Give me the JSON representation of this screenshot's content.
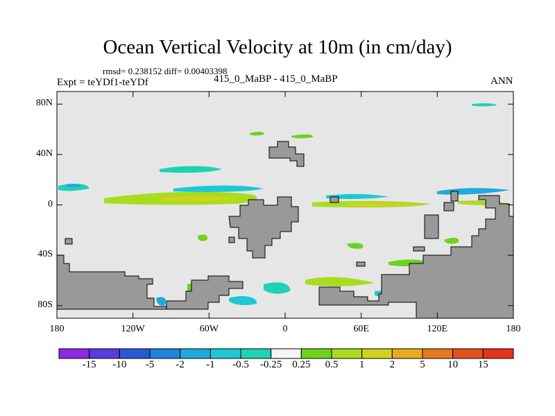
{
  "title": "Ocean Vertical Velocity at 10m (in cm/day)",
  "stats_line": "rmsd= 0.238152 diff= 0.00403398",
  "left_label": "Expt = teYDf1-teYDf",
  "center_label": "415_0_MaBP - 415_0_MaBP",
  "right_label": "ANN",
  "map": {
    "projection": "cylindrical equidistant",
    "lon_range": [
      -180,
      180
    ],
    "lat_range": [
      -90,
      90
    ],
    "y_ticks": [
      {
        "lat": 80,
        "label": "80N"
      },
      {
        "lat": 40,
        "label": "40N"
      },
      {
        "lat": 0,
        "label": "0"
      },
      {
        "lat": -40,
        "label": "40S"
      },
      {
        "lat": -80,
        "label": "80S"
      }
    ],
    "x_ticks": [
      {
        "lon": -180,
        "label": "180"
      },
      {
        "lon": -120,
        "label": "120W"
      },
      {
        "lon": -60,
        "label": "60W"
      },
      {
        "lon": 0,
        "label": "0"
      },
      {
        "lon": 60,
        "label": "60E"
      },
      {
        "lon": 120,
        "label": "120E"
      },
      {
        "lon": 180,
        "label": "180"
      }
    ],
    "colors": {
      "background": "#e6e6e6",
      "land": "#999999"
    }
  },
  "colorbar": {
    "labels": [
      "-15",
      "-10",
      "-5",
      "-2",
      "-1",
      "-0.5",
      "-0.25",
      "0.25",
      "0.5",
      "1",
      "2",
      "5",
      "10",
      "15"
    ],
    "colors": [
      "#8c2ae6",
      "#5a3cdc",
      "#2a5ad6",
      "#1f82dc",
      "#1eaadc",
      "#1ec8d2",
      "#1ed2b4",
      "#f5f5f5",
      "#6ed21e",
      "#aadc1e",
      "#d2d21e",
      "#e6aa1e",
      "#e6781e",
      "#e6501e",
      "#e6321e"
    ]
  }
}
